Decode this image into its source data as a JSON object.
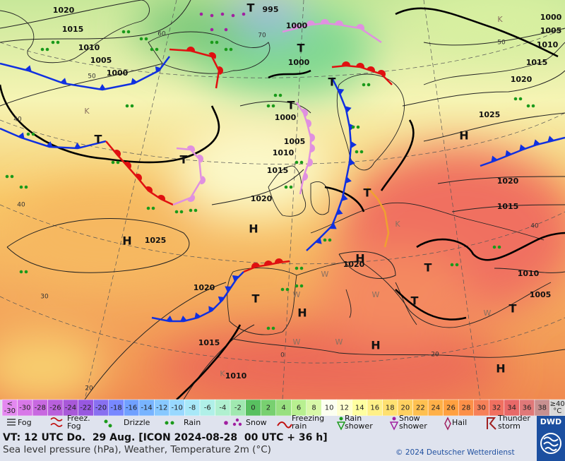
{
  "map": {
    "pressure_labels": [
      1020,
      1015,
      1010,
      1005,
      1000,
      995,
      1000,
      1000,
      1000,
      1005,
      1010,
      1015,
      1020,
      1025,
      1020,
      1015,
      1010,
      1020,
      1025,
      1020,
      1015,
      1010,
      1005,
      1000,
      1020,
      1015,
      1010,
      1005
    ],
    "centers": [
      "T",
      "T",
      "T",
      "T",
      "T",
      "T",
      "T",
      "T",
      "T",
      "T",
      "T",
      "H",
      "H",
      "H",
      "H",
      "H",
      "H",
      "H"
    ],
    "grid_labels": [
      "60",
      "70",
      "50",
      "40",
      "40",
      "30",
      "20",
      "50",
      "40",
      "20",
      "0"
    ],
    "weather_letters": [
      "W",
      "W",
      "W",
      "W",
      "W",
      "W",
      "K",
      "K",
      "K",
      "K"
    ]
  },
  "scale": {
    "low": {
      "sign": "<",
      "value": -30
    },
    "values": [
      -30,
      -28,
      -26,
      -24,
      -22,
      -20,
      -18,
      -16,
      -14,
      -12,
      -10,
      -8,
      -6,
      -4,
      -2,
      0,
      2,
      4,
      6,
      8,
      10,
      12,
      14,
      16,
      18,
      20,
      22,
      24,
      26,
      28,
      30,
      32,
      34,
      36,
      38
    ],
    "high": {
      "value": "≥40",
      "unit": "°C"
    },
    "colors": [
      "#e488f0",
      "#d878e8",
      "#c868e0",
      "#b860dc",
      "#a858d8",
      "#9858e0",
      "#8870f0",
      "#7888ff",
      "#70a0ff",
      "#78b4ff",
      "#88c8ff",
      "#98d8ff",
      "#a8e8f8",
      "#b0f0e8",
      "#b0f0d0",
      "#a0e8b0",
      "#58c060",
      "#78d070",
      "#98e080",
      "#b8f090",
      "#d8f8a8",
      "#fcfff0",
      "#ffffd0",
      "#ffffa0",
      "#fff088",
      "#ffe070",
      "#ffd060",
      "#ffc050",
      "#ffb048",
      "#ffa040",
      "#fc9048",
      "#f68058",
      "#f07060",
      "#e86868",
      "#e07878",
      "#c89090",
      "#d8d8d8"
    ]
  },
  "legend": {
    "items": [
      [
        "Fog"
      ],
      [
        "Freez.",
        "Fog"
      ],
      [
        "Drizzle"
      ],
      [
        "Rain"
      ],
      [
        "Snow"
      ],
      [
        "Freezing",
        "rain"
      ],
      [
        "Rain",
        "shower"
      ],
      [
        "Snow",
        "shower"
      ],
      [
        "Hail"
      ],
      [
        "Thunder",
        "storm"
      ]
    ]
  },
  "footer": {
    "valid_time": "VT: 12 UTC Do.  29 Aug. [ICON 2024-08-28  00 UTC + 36 h]",
    "description": "Sea level pressure (hPa), Weather, Temperature 2m (°C)",
    "copyright": "© 2024 Deutscher Wetterdienst",
    "logo": "DWD"
  }
}
